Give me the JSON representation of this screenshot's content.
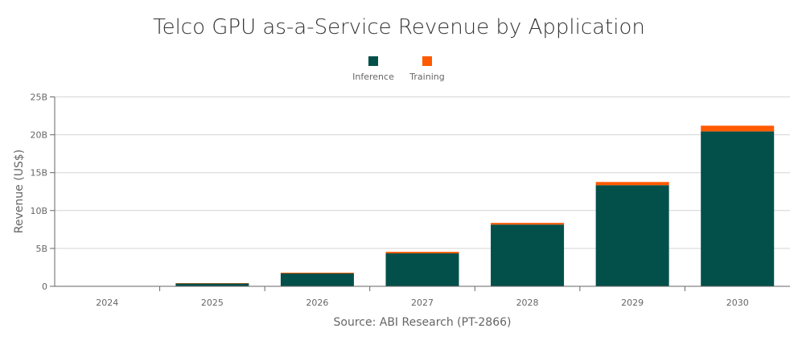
{
  "chart_data": {
    "type": "bar",
    "stacked": true,
    "title": "Telco GPU as-a-Service Revenue by Application",
    "ylabel": "Revenue (US$)",
    "xlabel": "Source: ABI Research (PT-2866)",
    "categories": [
      "2024",
      "2025",
      "2026",
      "2027",
      "2028",
      "2029",
      "2030"
    ],
    "series": [
      {
        "name": "Inference",
        "color": "#03504a",
        "values": [
          0.0,
          0.4,
          1.7,
          4.35,
          8.15,
          13.35,
          20.45
        ]
      },
      {
        "name": "Training",
        "color": "#ff5a00",
        "values": [
          0.0,
          0.02,
          0.1,
          0.2,
          0.22,
          0.42,
          0.75
        ]
      }
    ],
    "ylim": [
      0,
      25
    ],
    "yticks": [
      0,
      5,
      10,
      15,
      20,
      25
    ],
    "ytick_labels": [
      "0",
      "5B",
      "10B",
      "15B",
      "20B",
      "25B"
    ],
    "units": "billions US$",
    "grid": true,
    "legend_position": "top-center"
  }
}
